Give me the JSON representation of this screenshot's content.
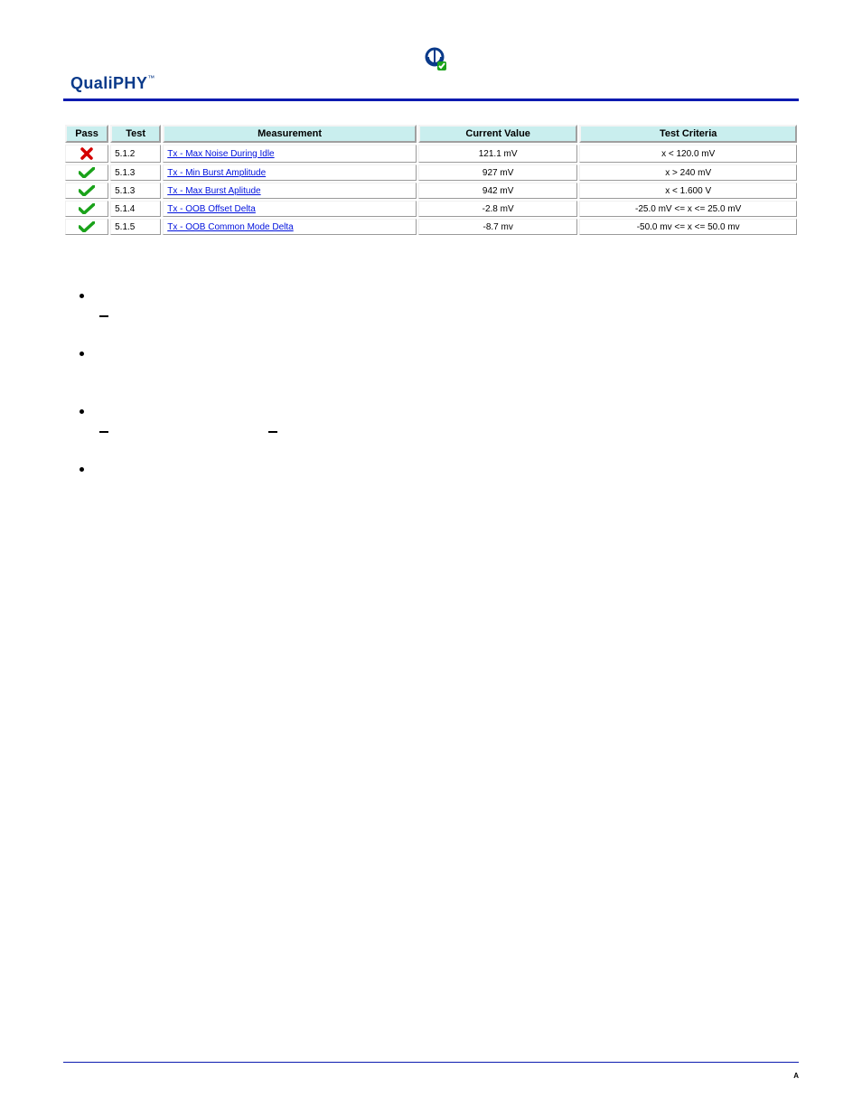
{
  "logo": {
    "brand": "QualiPHY",
    "tm": "™"
  },
  "table": {
    "header_bg": "#c9eeee",
    "columns": [
      "Pass",
      "Test",
      "Measurement",
      "Current Value",
      "Test Criteria"
    ],
    "rows": [
      {
        "pass": false,
        "test": "5.1.2",
        "meas": "Tx - Max Noise During Idle",
        "val": "121.1 mV",
        "crit": "x < 120.0 mV"
      },
      {
        "pass": true,
        "test": "5.1.3",
        "meas": "Tx - Min Burst Amplitude",
        "val": "927 mV",
        "crit": "x > 240 mV"
      },
      {
        "pass": true,
        "test": "5.1.3",
        "meas": "Tx - Max Burst Aplitude",
        "val": "942 mV",
        "crit": "x < 1.600 V"
      },
      {
        "pass": true,
        "test": "5.1.4",
        "meas": "Tx - OOB Offset Delta",
        "val": "-2.8 mV",
        "crit": "-25.0 mV <= x <= 25.0 mV"
      },
      {
        "pass": true,
        "test": "5.1.5",
        "meas": "Tx - OOB Common Mode Delta",
        "val": "-8.7 mv",
        "crit": "-50.0 mv <= x <= 50.0 mv"
      }
    ]
  },
  "footer": {
    "marker": "A"
  },
  "colors": {
    "rule": "#0b1bb0",
    "link": "#0011dd",
    "pass_icon": "#1aa21a",
    "fail_icon": "#d40000",
    "logo_blue": "#0a3a8a",
    "logo_green": "#1aa21a"
  }
}
